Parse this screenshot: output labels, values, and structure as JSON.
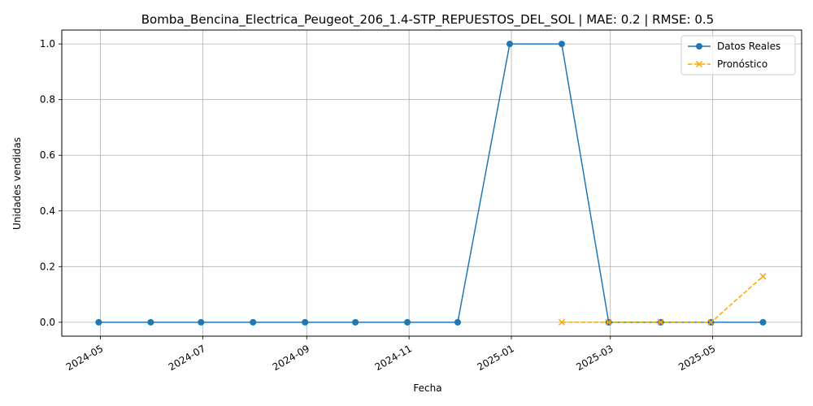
{
  "chart_data": {
    "type": "line",
    "title": "Bomba_Bencina_Electrica_Peugeot_206_1.4-STP_REPUESTOS_DEL_SOL | MAE: 0.2 | RMSE: 0.5",
    "xlabel": "Fecha",
    "ylabel": "Unidades vendidas",
    "x_ticks": [
      "2024-05",
      "2024-07",
      "2024-09",
      "2024-11",
      "2025-01",
      "2025-03",
      "2025-05"
    ],
    "y_ticks": [
      "0.0",
      "0.2",
      "0.4",
      "0.6",
      "0.8",
      "1.0"
    ],
    "ylim": [
      -0.05,
      1.05
    ],
    "xlim": [
      "2024-04-08",
      "2025-06-23"
    ],
    "grid": true,
    "legend_position": "top-right",
    "series": [
      {
        "name": "Datos Reales",
        "color": "#1f77b4",
        "style": "solid",
        "marker": "circle",
        "x": [
          "2024-04-30",
          "2024-05-31",
          "2024-06-30",
          "2024-07-31",
          "2024-08-31",
          "2024-09-30",
          "2024-10-31",
          "2024-11-30",
          "2024-12-31",
          "2025-01-31",
          "2025-02-28",
          "2025-03-31",
          "2025-04-30",
          "2025-05-31"
        ],
        "values": [
          0,
          0,
          0,
          0,
          0,
          0,
          0,
          0,
          1,
          1,
          0,
          0,
          0,
          0
        ]
      },
      {
        "name": "Pronóstico",
        "color": "#ffa500",
        "style": "dashed",
        "marker": "x",
        "x": [
          "2025-01-31",
          "2025-02-28",
          "2025-03-31",
          "2025-04-30",
          "2025-05-31"
        ],
        "values": [
          0,
          0,
          0,
          0,
          0.165
        ]
      }
    ]
  }
}
